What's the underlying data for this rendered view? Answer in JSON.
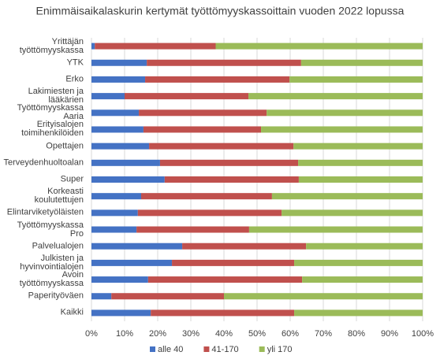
{
  "chart_data": {
    "type": "stacked_bar_horizontal",
    "title": "Enimmäisaikalaskurin kertymät työttömyyskassoittain  vuoden 2022 lopussa",
    "categories": [
      "Yrittäjän työttömyyskassa",
      "YTK",
      "Erko",
      "Lakimiesten ja lääkärien",
      "Työttömyyskassa Aaria",
      "Erityisalojen toimihenkilöiden",
      "Opettajen",
      "Terveydenhuoltoalan",
      "Super",
      "Korkeasti koulutettujen",
      "Elintarviketyöläisten",
      "Työttömyyskassa Pro",
      "Palvelualojen",
      "Julkisten ja hyvinvointialojen",
      "Avoin työttömyyskassa",
      "Paperityöväen",
      "Kaikki"
    ],
    "series": [
      {
        "name": "alle 40",
        "color": "#4472c4",
        "values": [
          1,
          16.7,
          16.2,
          10,
          14.3,
          15.7,
          17.4,
          20.7,
          22.1,
          15,
          14,
          13.6,
          27.4,
          24.3,
          17.1,
          6,
          17.9
        ]
      },
      {
        "name": "41-170",
        "color": "#c0504d",
        "values": [
          36.5,
          46.6,
          43.6,
          37.4,
          38.6,
          35.5,
          43.6,
          41.7,
          40.5,
          39.5,
          43.4,
          34,
          37.4,
          36.9,
          46.5,
          34,
          43.3
        ]
      },
      {
        "name": "yli 170",
        "color": "#9bbb59",
        "values": [
          62.5,
          36.7,
          40.2,
          52.6,
          47.1,
          48.8,
          39,
          37.6,
          37.4,
          45.5,
          42.6,
          52.4,
          35.2,
          38.8,
          36.4,
          60,
          38.8
        ]
      }
    ],
    "xlim": [
      0,
      100
    ],
    "xticks": [
      {
        "value": 0,
        "label": "0%"
      },
      {
        "value": 10,
        "label": "10%"
      },
      {
        "value": 20,
        "label": "20%"
      },
      {
        "value": 30,
        "label": "30%"
      },
      {
        "value": 40,
        "label": "40%"
      },
      {
        "value": 50,
        "label": "50%"
      },
      {
        "value": 60,
        "label": "60%"
      },
      {
        "value": 70,
        "label": "70%"
      },
      {
        "value": 80,
        "label": "80%"
      },
      {
        "value": 90,
        "label": "90%"
      },
      {
        "value": 100,
        "label": "100%"
      }
    ],
    "grid": true,
    "legend": "bottom"
  }
}
